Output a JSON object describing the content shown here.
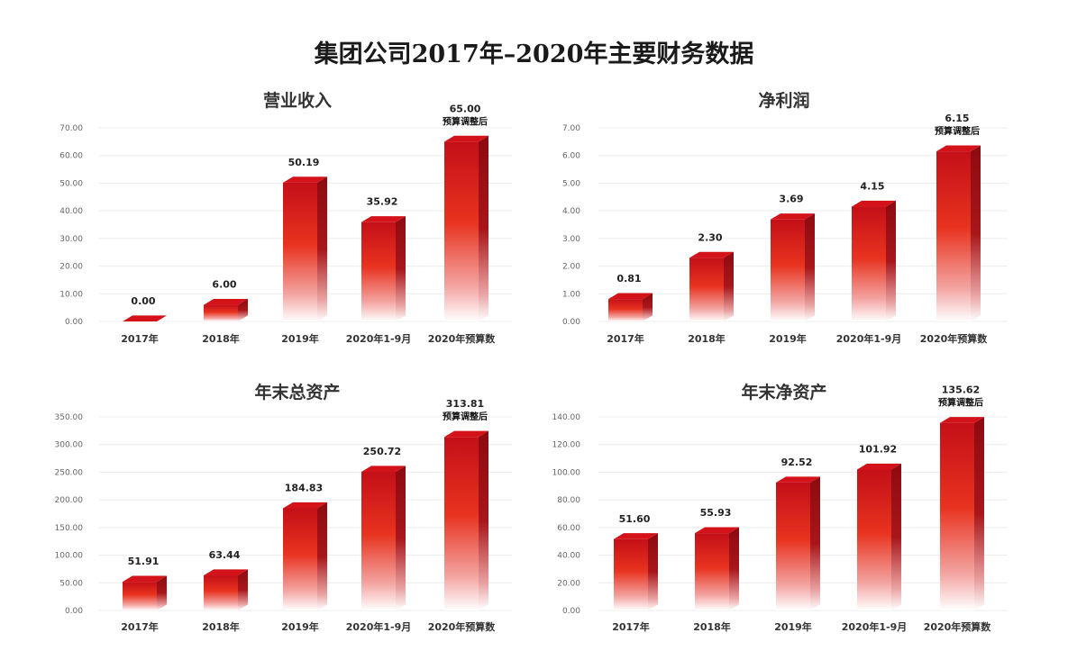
{
  "page": {
    "title": "集团公司2017年–2020年主要财务数据"
  },
  "colors": {
    "bar_top": "#c01018",
    "bar_mid": "#e62a1c",
    "bar_bottom": "#ffffff",
    "bar_side": "#8e0c10",
    "bar_cap": "#d8141b"
  },
  "chart_data": [
    {
      "type": "bar",
      "title": "营业收入",
      "categories": [
        "2017年",
        "2018年",
        "2019年",
        "2020年1-9月",
        "2020年预算数"
      ],
      "values": [
        0.0,
        6.0,
        50.19,
        35.92,
        65.0
      ],
      "value_labels": [
        "0.00",
        "6.00",
        "50.19",
        "35.92",
        "65.00"
      ],
      "notes": [
        "",
        "",
        "",
        "",
        "预算调整后"
      ],
      "ylim": [
        0,
        70
      ],
      "yticks": [
        "0.00",
        "10.00",
        "20.00",
        "30.00",
        "40.00",
        "50.00",
        "60.00",
        "70.00"
      ],
      "grid": true
    },
    {
      "type": "bar",
      "title": "净利润",
      "categories": [
        "2017年",
        "2018年",
        "2019年",
        "2020年1-9月",
        "2020年预算数"
      ],
      "values": [
        0.81,
        2.3,
        3.69,
        4.15,
        6.15
      ],
      "value_labels": [
        "0.81",
        "2.30",
        "3.69",
        "4.15",
        "6.15"
      ],
      "notes": [
        "",
        "",
        "",
        "",
        "预算调整后"
      ],
      "ylim": [
        0,
        7
      ],
      "yticks": [
        "0.00",
        "1.00",
        "2.00",
        "3.00",
        "4.00",
        "5.00",
        "6.00",
        "7.00"
      ],
      "grid": true
    },
    {
      "type": "bar",
      "title": "年末总资产",
      "categories": [
        "2017年",
        "2018年",
        "2019年",
        "2020年1-9月",
        "2020年预算数"
      ],
      "values": [
        51.91,
        63.44,
        184.83,
        250.72,
        313.81
      ],
      "value_labels": [
        "51.91",
        "63.44",
        "184.83",
        "250.72",
        "313.81"
      ],
      "notes": [
        "",
        "",
        "",
        "",
        "预算调整后"
      ],
      "ylim": [
        0,
        350
      ],
      "yticks": [
        "0.00",
        "50.00",
        "100.00",
        "150.00",
        "200.00",
        "250.00",
        "300.00",
        "350.00"
      ],
      "grid": true
    },
    {
      "type": "bar",
      "title": "年末净资产",
      "categories": [
        "2017年",
        "2018年",
        "2019年",
        "2020年1-9月",
        "2020年预算数"
      ],
      "values": [
        51.6,
        55.93,
        92.52,
        101.92,
        135.62
      ],
      "value_labels": [
        "51.60",
        "55.93",
        "92.52",
        "101.92",
        "135.62"
      ],
      "notes": [
        "",
        "",
        "",
        "",
        "预算调整后"
      ],
      "ylim": [
        0,
        140
      ],
      "yticks": [
        "0.00",
        "20.00",
        "40.00",
        "60.00",
        "80.00",
        "100.00",
        "120.00",
        "140.00"
      ],
      "grid": true
    }
  ]
}
